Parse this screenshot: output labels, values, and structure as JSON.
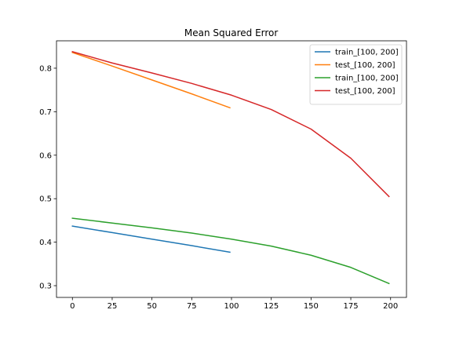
{
  "chart_data": {
    "type": "line",
    "title": "Mean Squared Error",
    "xlabel": "",
    "ylabel": "",
    "xlim": [
      -10,
      210
    ],
    "ylim": [
      0.273,
      0.863
    ],
    "xticks": [
      0,
      25,
      50,
      75,
      100,
      125,
      150,
      175,
      200
    ],
    "yticks": [
      0.3,
      0.4,
      0.5,
      0.6,
      0.7,
      0.8
    ],
    "grid": false,
    "legend_position": "top-right",
    "series": [
      {
        "name": "train_[100, 200]",
        "color": "#1f77b4",
        "x": [
          0,
          25,
          50,
          75,
          99
        ],
        "y": [
          0.437,
          0.422,
          0.407,
          0.392,
          0.377
        ]
      },
      {
        "name": "test_[100, 200]",
        "color": "#ff7f0e",
        "x": [
          0,
          25,
          50,
          75,
          99
        ],
        "y": [
          0.836,
          0.805,
          0.773,
          0.741,
          0.709
        ]
      },
      {
        "name": "train_[100, 200]",
        "color": "#2ca02c",
        "x": [
          0,
          25,
          50,
          75,
          100,
          125,
          150,
          175,
          199
        ],
        "y": [
          0.455,
          0.444,
          0.433,
          0.421,
          0.407,
          0.391,
          0.37,
          0.342,
          0.305
        ]
      },
      {
        "name": "test_[100, 200]",
        "color": "#d62728",
        "x": [
          0,
          25,
          50,
          75,
          100,
          125,
          150,
          175,
          199
        ],
        "y": [
          0.838,
          0.812,
          0.789,
          0.765,
          0.738,
          0.705,
          0.66,
          0.593,
          0.505
        ]
      }
    ]
  }
}
